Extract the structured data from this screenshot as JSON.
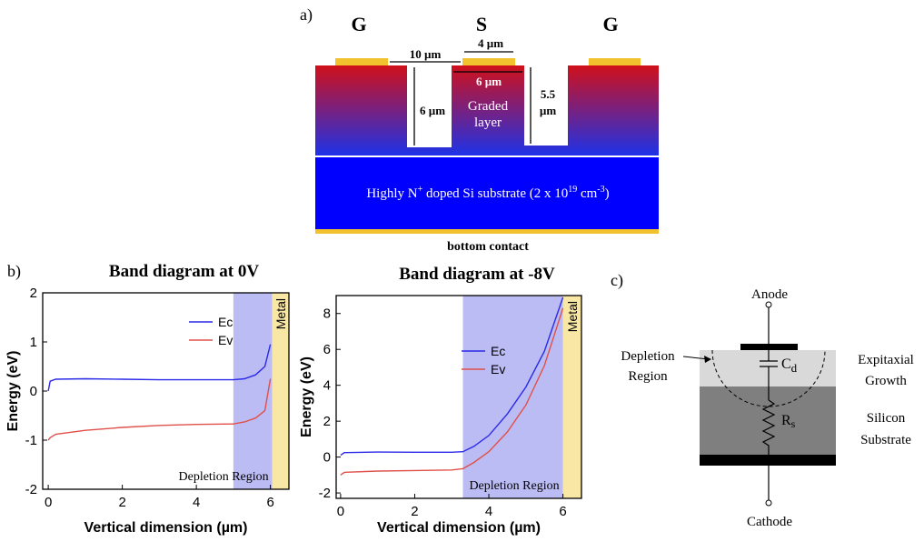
{
  "panel_labels": [
    "a)",
    "b)",
    "c)"
  ],
  "diagram_a": {
    "gate_left": "G",
    "source": "S",
    "gate_right": "G",
    "dim_gap": "10 µm",
    "dim_source": "4 µm",
    "dim_pillar": "6 µm",
    "dim_depth": "6 µm",
    "dim_depth2": [
      "5.5",
      "µm"
    ],
    "graded": [
      "Graded",
      "layer"
    ],
    "substrate": [
      "Highly N",
      "+",
      " doped Si substrate (2 x 10",
      "19",
      " cm",
      "-3",
      ")"
    ],
    "bottom": "bottom contact"
  },
  "chart_data": [
    {
      "type": "line",
      "title": "Band diagram at 0V",
      "x_label": "Vertical dimension (µm)",
      "y_label": "Energy (eV)",
      "xlim": [
        -0.15,
        6.5
      ],
      "ylim": [
        -2,
        2
      ],
      "xticks": [
        0,
        2,
        4,
        6
      ],
      "yticks": [
        -2,
        -1,
        0,
        1,
        2
      ],
      "regions": [
        {
          "label": "Depletion Region",
          "range": [
            5,
            6.05
          ],
          "color": "#bcbcf4"
        },
        {
          "label": "Metal",
          "range": [
            6.05,
            6.5
          ],
          "color": "#f9e7a6"
        }
      ],
      "x": [
        0,
        0.05,
        0.2,
        1,
        2,
        3,
        4,
        5,
        5.3,
        5.6,
        5.85,
        6
      ],
      "series": [
        {
          "name": "Ec",
          "color": "#2a2ae8",
          "values": [
            0,
            0.2,
            0.24,
            0.25,
            0.24,
            0.23,
            0.23,
            0.23,
            0.25,
            0.33,
            0.5,
            0.95
          ]
        },
        {
          "name": "Ev",
          "color": "#e0504a",
          "values": [
            -1,
            -0.95,
            -0.88,
            -0.8,
            -0.74,
            -0.7,
            -0.68,
            -0.67,
            -0.63,
            -0.55,
            -0.4,
            0.25
          ]
        }
      ]
    },
    {
      "type": "line",
      "title": "Band diagram at -8V",
      "x_label": "Vertical dimension (µm)",
      "y_label": "Energy (eV)",
      "xlim": [
        -0.12,
        6.5
      ],
      "ylim": [
        -2.3,
        9
      ],
      "xticks": [
        0,
        2,
        4,
        6
      ],
      "yticks": [
        -2,
        0,
        2,
        4,
        6,
        8
      ],
      "regions": [
        {
          "label": "Depletion Region",
          "range": [
            3.3,
            6
          ],
          "color": "#bcbcf4"
        },
        {
          "label": "Metal",
          "range": [
            6,
            6.5
          ],
          "color": "#f9e7a6"
        }
      ],
      "x": [
        0,
        0.1,
        1,
        2,
        3,
        3.3,
        3.6,
        4,
        4.5,
        5,
        5.5,
        6
      ],
      "series": [
        {
          "name": "Ec",
          "color": "#2a2ae8",
          "values": [
            0.1,
            0.25,
            0.28,
            0.27,
            0.27,
            0.3,
            0.6,
            1.2,
            2.4,
            3.9,
            5.9,
            8.9
          ]
        },
        {
          "name": "Ev",
          "color": "#e0504a",
          "values": [
            -1,
            -0.85,
            -0.78,
            -0.75,
            -0.72,
            -0.65,
            -0.3,
            0.3,
            1.4,
            2.9,
            5.1,
            8.3
          ]
        }
      ]
    }
  ],
  "diagram_c": {
    "anode": "Anode",
    "cathode": "Cathode",
    "depletion": [
      "Depletion",
      "Region"
    ],
    "cap": [
      "C",
      "d"
    ],
    "res": [
      "R",
      "s"
    ],
    "epi": [
      "Expitaxial",
      "Growth"
    ],
    "sub": [
      "Silicon",
      "Substrate"
    ]
  }
}
